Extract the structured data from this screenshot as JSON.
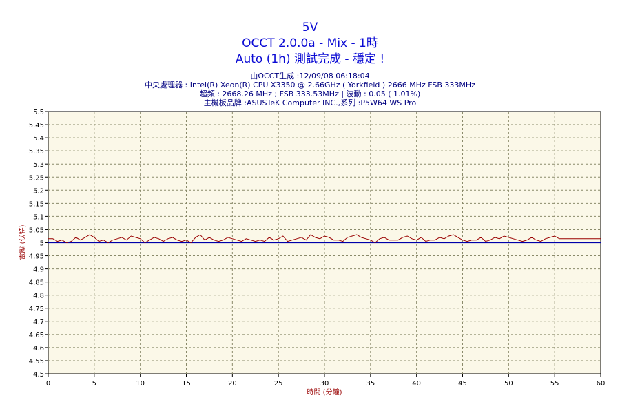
{
  "header": {
    "title_lines": [
      "5V",
      "OCCT 2.0.0a - Mix - 1時",
      "Auto (1h) 測試完成 - 穩定 !"
    ],
    "info_lines": [
      "由OCCT生成 :12/09/08 06:18:04",
      "中央處理器 : Intel(R) Xeon(R) CPU X3350 @ 2.66GHz ( Yorkfield ) 2666 MHz FSB 333MHz",
      "超頻 : 2668.26 MHz ; FSB 333.53MHz | 波動 : 0.05 ( 1.01%)",
      "主機板品牌 :ASUSTeK Computer INC.,系列 :P5W64 WS Pro"
    ]
  },
  "colors": {
    "plot_background": "#fbf8e8",
    "grid": "#8a8a6a",
    "series": "#990000",
    "reference_line": "#0000aa",
    "title": "#0b0bd4",
    "info_text": "#000080",
    "axis_label": "#990000"
  },
  "chart_data": {
    "type": "line",
    "xlabel": "時間 (分鐘)",
    "ylabel": "電壓 (伏特)",
    "xlim": [
      0,
      60
    ],
    "ylim": [
      4.5,
      5.5
    ],
    "x_ticks": [
      "0",
      "5",
      "10",
      "15",
      "20",
      "25",
      "30",
      "35",
      "40",
      "45",
      "50",
      "55",
      "60"
    ],
    "y_ticks": [
      "4.5",
      "4.55",
      "4.6",
      "4.65",
      "4.7",
      "4.75",
      "4.8",
      "4.85",
      "4.9",
      "4.95",
      "5",
      "5.05",
      "5.1",
      "5.15",
      "5.2",
      "5.25",
      "5.3",
      "5.35",
      "5.4",
      "5.45",
      "5.5"
    ],
    "grid": true,
    "reference_line": 5.0,
    "series": [
      {
        "x": [
          0,
          0.5,
          1,
          1.5,
          2,
          2.5,
          3,
          3.5,
          4,
          4.5,
          5,
          5.5,
          6,
          6.5,
          7,
          7.5,
          8,
          8.5,
          9,
          9.5,
          10,
          10.5,
          11,
          11.5,
          12,
          12.5,
          13,
          13.5,
          14,
          14.5,
          15,
          15.5,
          16,
          16.5,
          17,
          17.5,
          18,
          18.5,
          19,
          19.5,
          20,
          20.5,
          21,
          21.5,
          22,
          22.5,
          23,
          23.5,
          24,
          24.5,
          25,
          25.5,
          26,
          26.5,
          27,
          27.5,
          28,
          28.5,
          29,
          29.5,
          30,
          30.5,
          31,
          31.5,
          32,
          32.5,
          33,
          33.5,
          34,
          34.5,
          35,
          35.5,
          36,
          36.5,
          37,
          37.5,
          38,
          38.5,
          39,
          39.5,
          40,
          40.5,
          41,
          41.5,
          42,
          42.5,
          43,
          43.5,
          44,
          44.5,
          45,
          45.5,
          46,
          46.5,
          47,
          47.5,
          48,
          48.5,
          49,
          49.5,
          50,
          50.5,
          51,
          51.5,
          52,
          52.5,
          53,
          53.5,
          54,
          54.5,
          55,
          55.5,
          56,
          57,
          58,
          59,
          60
        ],
        "values": [
          5.015,
          5.015,
          5.005,
          5.01,
          5.0,
          5.005,
          5.02,
          5.01,
          5.02,
          5.03,
          5.02,
          5.005,
          5.01,
          5.0,
          5.01,
          5.015,
          5.02,
          5.01,
          5.025,
          5.02,
          5.015,
          5.0,
          5.01,
          5.02,
          5.015,
          5.005,
          5.015,
          5.02,
          5.01,
          5.005,
          5.01,
          5.0,
          5.02,
          5.03,
          5.01,
          5.02,
          5.01,
          5.005,
          5.01,
          5.02,
          5.015,
          5.01,
          5.005,
          5.015,
          5.01,
          5.005,
          5.01,
          5.005,
          5.02,
          5.01,
          5.015,
          5.025,
          5.005,
          5.01,
          5.015,
          5.02,
          5.01,
          5.03,
          5.02,
          5.015,
          5.025,
          5.02,
          5.01,
          5.01,
          5.005,
          5.02,
          5.025,
          5.03,
          5.02,
          5.015,
          5.01,
          5.0,
          5.015,
          5.02,
          5.01,
          5.01,
          5.01,
          5.02,
          5.025,
          5.015,
          5.01,
          5.02,
          5.005,
          5.01,
          5.01,
          5.02,
          5.015,
          5.025,
          5.03,
          5.02,
          5.01,
          5.005,
          5.01,
          5.01,
          5.02,
          5.005,
          5.01,
          5.02,
          5.015,
          5.025,
          5.02,
          5.015,
          5.01,
          5.005,
          5.01,
          5.02,
          5.01,
          5.005,
          5.015,
          5.02,
          5.025,
          5.015,
          5.015,
          5.015,
          5.015,
          5.015,
          5.015
        ]
      }
    ]
  }
}
